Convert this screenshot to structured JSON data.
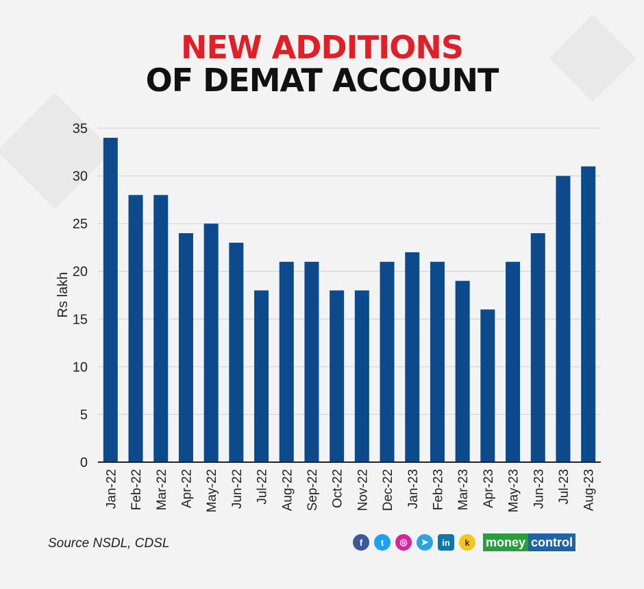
{
  "header": {
    "title_line1": "NEW ADDITIONS",
    "title_line2": "OF DEMAT ACCOUNT"
  },
  "chart_data": {
    "type": "bar",
    "title": "NEW ADDITIONS OF DEMAT ACCOUNT",
    "xlabel": "",
    "ylabel": "Rs lakh",
    "ylim": [
      0,
      35
    ],
    "yticks": [
      0,
      5,
      10,
      15,
      20,
      25,
      30,
      35
    ],
    "grid": true,
    "categories": [
      "Jan-22",
      "Feb-22",
      "Mar-22",
      "Apr-22",
      "May-22",
      "Jun-22",
      "Jul-22",
      "Aug-22",
      "Sep-22",
      "Oct-22",
      "Nov-22",
      "Dec-22",
      "Jan-23",
      "Feb-23",
      "Mar-23",
      "Apr-23",
      "May-23",
      "Jun-23",
      "Jul-23",
      "Aug-23"
    ],
    "values": [
      34,
      28,
      28,
      24,
      25,
      23,
      18,
      21,
      21,
      18,
      18,
      21,
      22,
      21,
      19,
      16,
      21,
      24,
      30,
      31
    ],
    "bar_color": "#0d4a8c"
  },
  "footer": {
    "source": "Source NSDL, CDSL",
    "social_icons": [
      "facebook-icon",
      "twitter-icon",
      "instagram-icon",
      "telegram-icon",
      "linkedin-icon",
      "koo-icon"
    ],
    "brand_part1": "money",
    "brand_part2": "control"
  }
}
